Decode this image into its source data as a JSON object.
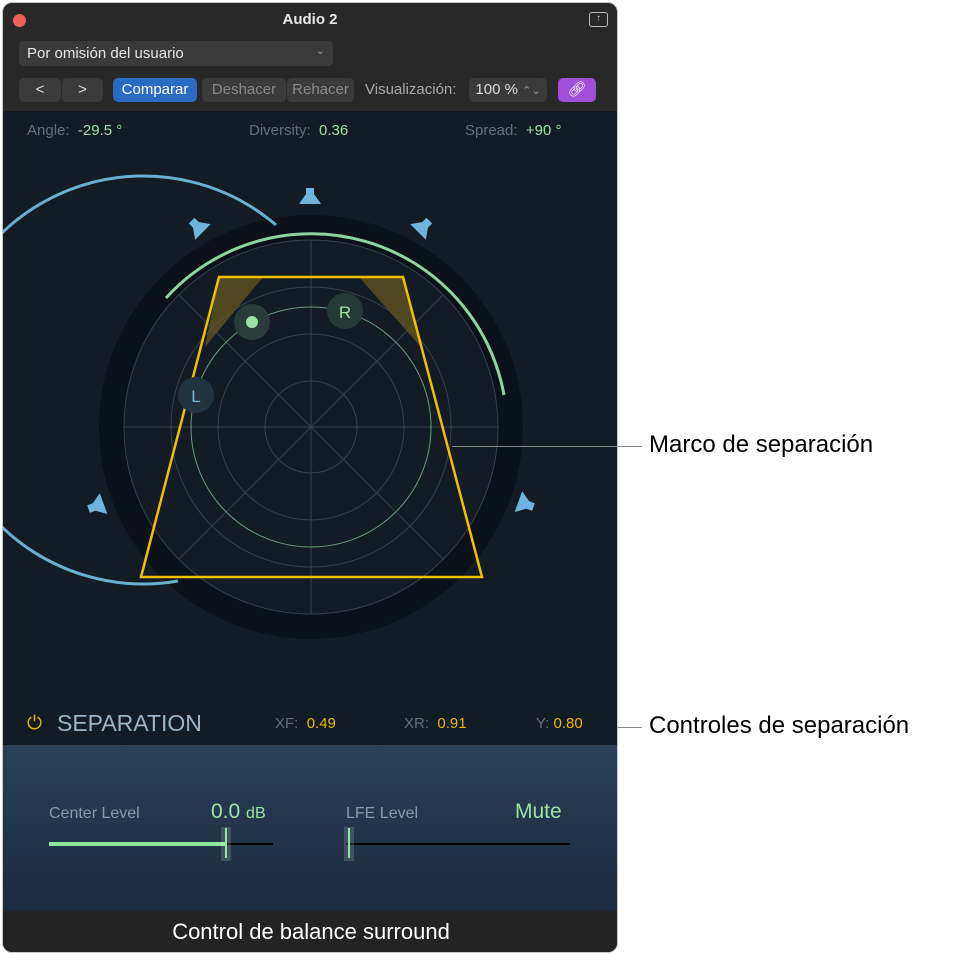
{
  "window": {
    "title": "Audio 2"
  },
  "toolbar": {
    "preset": "Por omisión del usuario",
    "prev": "<",
    "next": ">",
    "compare": "Comparar",
    "undo": "Deshacer",
    "redo": "Rehacer",
    "view_label": "Visualización:",
    "view_value": "100 %",
    "link_icon": "link-icon",
    "link_color": "#a050d8"
  },
  "panner": {
    "angle_label": "Angle:",
    "angle_value": "-29.5 °",
    "diversity_label": "Diversity:",
    "diversity_value": "0.36",
    "spread_label": "Spread:",
    "spread_value": "+90 °",
    "left_label": "L",
    "right_label": "R"
  },
  "separation": {
    "title": "SEPARATION",
    "xf_label": "XF:",
    "xf_value": "0.49",
    "xr_label": "XR:",
    "xr_value": "0.91",
    "y_label": "Y:",
    "y_value": "0.80",
    "frame_color": "#f0c000"
  },
  "levels": {
    "center_label": "Center Level",
    "center_value": "0.0",
    "center_unit": "dB",
    "center_fill": 0.79,
    "lfe_label": "LFE Level",
    "lfe_value": "Mute",
    "lfe_fill": 0
  },
  "caption": "Control de balance surround",
  "annotations": {
    "frame": "Marco de separación",
    "controls": "Controles de separación"
  }
}
